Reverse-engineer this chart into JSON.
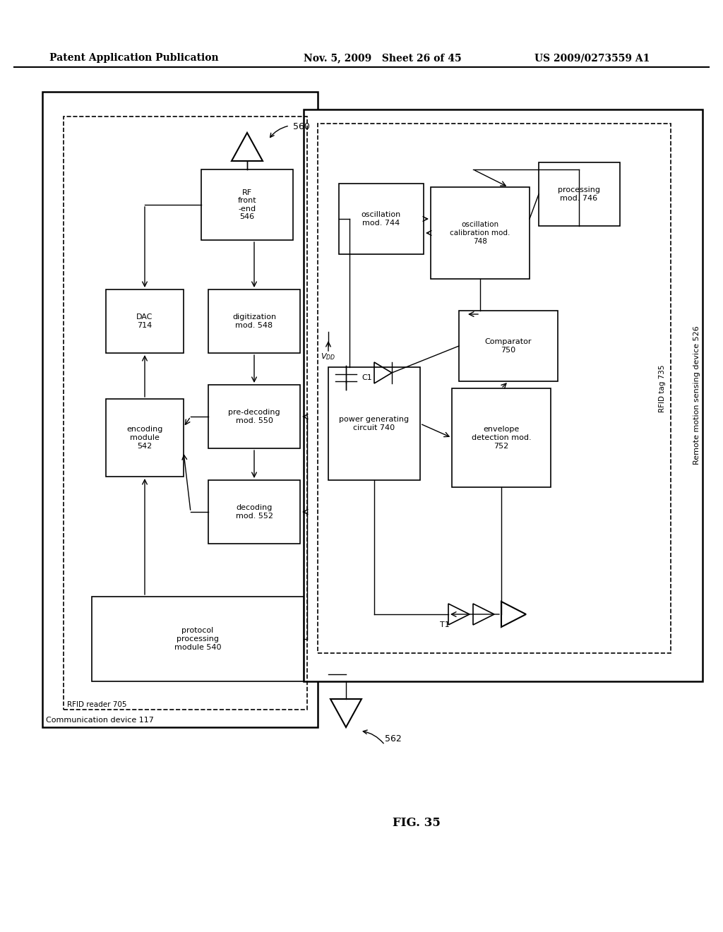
{
  "title_left": "Patent Application Publication",
  "title_mid": "Nov. 5, 2009   Sheet 26 of 45",
  "title_right": "US 2009/0273559 A1",
  "fig_label": "FIG. 35",
  "background": "#ffffff"
}
